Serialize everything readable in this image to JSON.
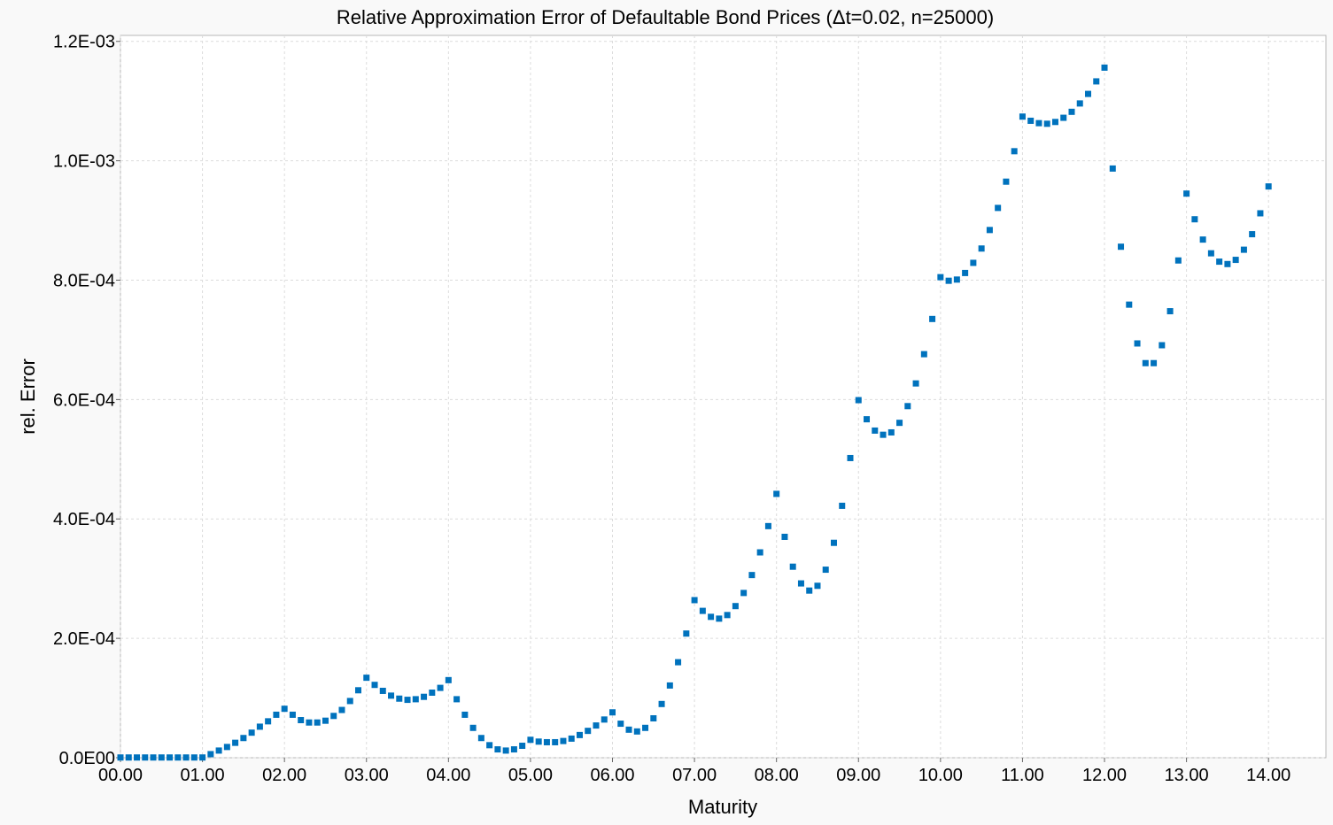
{
  "chart_data": {
    "type": "scatter",
    "title": "Relative Approximation Error of Defaultable Bond Prices (Δt=0.02, n=25000)",
    "xlabel": "Maturity",
    "ylabel": "rel. Error",
    "xlim": [
      0,
      14.7
    ],
    "ylim": [
      0,
      0.00121
    ],
    "xticks": [
      0,
      1,
      2,
      3,
      4,
      5,
      6,
      7,
      8,
      9,
      10,
      11,
      12,
      13,
      14
    ],
    "xtick_labels": [
      "00.00",
      "01.00",
      "02.00",
      "03.00",
      "04.00",
      "05.00",
      "06.00",
      "07.00",
      "08.00",
      "09.00",
      "10.00",
      "11.00",
      "12.00",
      "13.00",
      "14.00"
    ],
    "yticks": [
      0,
      0.0002,
      0.0004,
      0.0006,
      0.0008,
      0.001,
      0.0012
    ],
    "ytick_labels": [
      "0.0E00",
      "2.0E-04",
      "4.0E-04",
      "6.0E-04",
      "8.0E-04",
      "1.0E-03",
      "1.2E-03"
    ],
    "grid": true,
    "marker": "square",
    "color": "#0072bd",
    "x": [
      0.0,
      0.1,
      0.2,
      0.3,
      0.4,
      0.5,
      0.6,
      0.7,
      0.8,
      0.9,
      1.0,
      1.1,
      1.2,
      1.3,
      1.4,
      1.5,
      1.6,
      1.7,
      1.8,
      1.9,
      2.0,
      2.1,
      2.2,
      2.3,
      2.4,
      2.5,
      2.6,
      2.7,
      2.8,
      2.9,
      3.0,
      3.1,
      3.2,
      3.3,
      3.4,
      3.5,
      3.6,
      3.7,
      3.8,
      3.9,
      4.0,
      4.1,
      4.2,
      4.3,
      4.4,
      4.5,
      4.6,
      4.7,
      4.8,
      4.9,
      5.0,
      5.1,
      5.2,
      5.3,
      5.4,
      5.5,
      5.6,
      5.7,
      5.8,
      5.9,
      6.0,
      6.1,
      6.2,
      6.3,
      6.4,
      6.5,
      6.6,
      6.7,
      6.8,
      6.9,
      7.0,
      7.1,
      7.2,
      7.3,
      7.4,
      7.5,
      7.6,
      7.7,
      7.8,
      7.9,
      8.0,
      8.1,
      8.2,
      8.3,
      8.4,
      8.5,
      8.6,
      8.7,
      8.8,
      8.9,
      9.0,
      9.1,
      9.2,
      9.3,
      9.4,
      9.5,
      9.6,
      9.7,
      9.8,
      9.9,
      10.0,
      10.1,
      10.2,
      10.3,
      10.4,
      10.5,
      10.6,
      10.7,
      10.8,
      10.9,
      11.0,
      11.1,
      11.2,
      11.3,
      11.4,
      11.5,
      11.6,
      11.7,
      11.8,
      11.9,
      12.0,
      12.1,
      12.2,
      12.3,
      12.4,
      12.5,
      12.6,
      12.7,
      12.8,
      12.9,
      13.0,
      13.1,
      13.2,
      13.3,
      13.4,
      13.5,
      13.6,
      13.7,
      13.8,
      13.9,
      14.0
    ],
    "y": [
      4e-07,
      4e-07,
      4e-07,
      4e-07,
      4e-07,
      4e-07,
      4e-07,
      4e-07,
      4e-07,
      4e-07,
      4e-07,
      6e-06,
      1.2e-05,
      1.8e-05,
      2.5e-05,
      3.3e-05,
      4.2e-05,
      5.2e-05,
      6.1e-05,
      7.2e-05,
      8.2e-05,
      7.2e-05,
      6.3e-05,
      5.9e-05,
      5.9e-05,
      6.2e-05,
      7e-05,
      8e-05,
      9.5e-05,
      0.000113,
      0.000134,
      0.000122,
      0.000112,
      0.000104,
      9.9e-05,
      9.7e-05,
      9.8e-05,
      0.000102,
      0.000109,
      0.000117,
      0.00013,
      9.8e-05,
      7.2e-05,
      5e-05,
      3.3e-05,
      2.1e-05,
      1.4e-05,
      1.2e-05,
      1.4e-05,
      2e-05,
      3e-05,
      2.7e-05,
      2.6e-05,
      2.6e-05,
      2.8e-05,
      3.2e-05,
      3.8e-05,
      4.5e-05,
      5.4e-05,
      6.4e-05,
      7.6e-05,
      5.7e-05,
      4.7e-05,
      4.4e-05,
      5e-05,
      6.6e-05,
      9e-05,
      0.000121,
      0.00016,
      0.000208,
      0.000264,
      0.000246,
      0.000236,
      0.000233,
      0.000239,
      0.000254,
      0.000276,
      0.000306,
      0.000344,
      0.000388,
      0.000442,
      0.00037,
      0.00032,
      0.000292,
      0.00028,
      0.000288,
      0.000315,
      0.00036,
      0.000422,
      0.000502,
      0.000599,
      0.000567,
      0.000548,
      0.000541,
      0.000545,
      0.000561,
      0.000589,
      0.000627,
      0.000676,
      0.000735,
      0.000805,
      0.000799,
      0.000801,
      0.000812,
      0.000829,
      0.000853,
      0.000884,
      0.000921,
      0.000965,
      0.001016,
      0.001074,
      0.001067,
      0.001063,
      0.001062,
      0.001065,
      0.001072,
      0.001082,
      0.001096,
      0.001112,
      0.001133,
      0.001156,
      0.000987,
      0.000856,
      0.000759,
      0.000694,
      0.000661,
      0.000661,
      0.000691,
      0.000748,
      0.000833,
      0.000945,
      0.000902,
      0.000868,
      0.000845,
      0.000831,
      0.000827,
      0.000834,
      0.000851,
      0.000877,
      0.000912,
      0.000957
    ]
  }
}
